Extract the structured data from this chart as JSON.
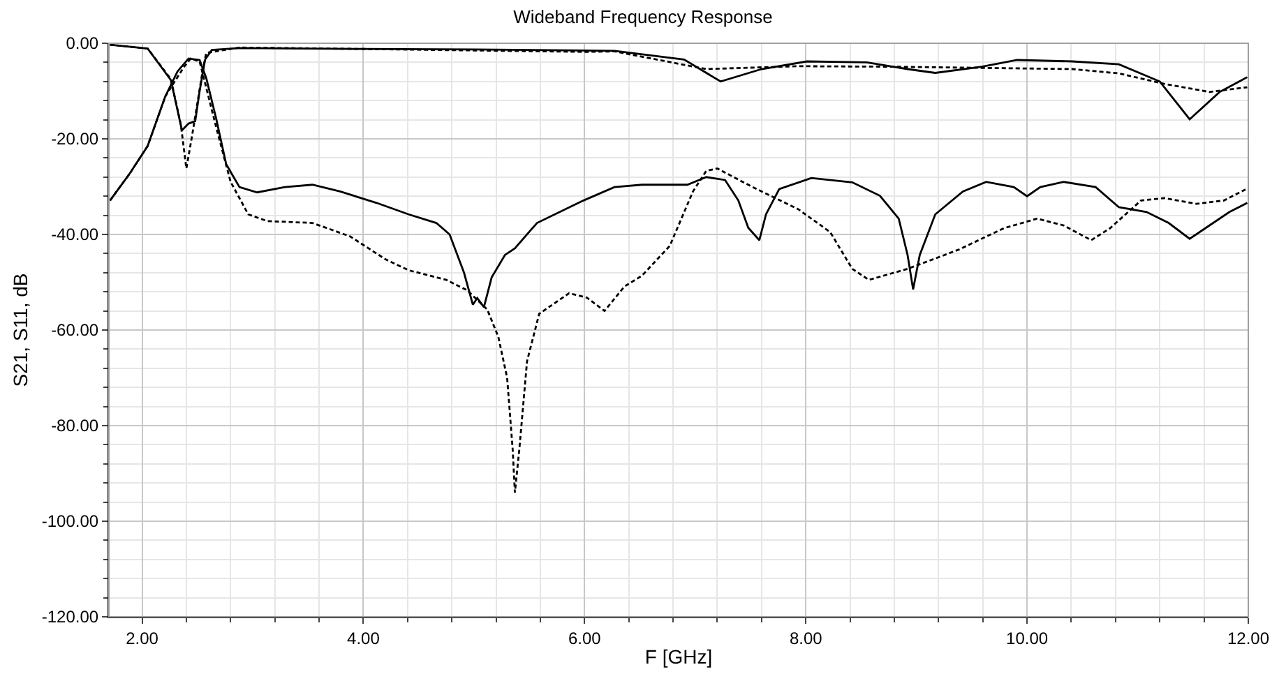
{
  "chart_data": {
    "type": "line",
    "title": "Wideband Frequency Response",
    "xlabel": "F [GHz]",
    "ylabel": "S21, S11, dB",
    "xlim": [
      1.7,
      12
    ],
    "ylim": [
      -120,
      0
    ],
    "xticks": [
      {
        "value": 2,
        "label": "2.00"
      },
      {
        "value": 4,
        "label": "4.00"
      },
      {
        "value": 6,
        "label": "6.00"
      },
      {
        "value": 8,
        "label": "8.00"
      },
      {
        "value": 10,
        "label": "10.00"
      },
      {
        "value": 12,
        "label": "12.00"
      }
    ],
    "yticks": [
      {
        "value": -120,
        "label": "-120.00"
      },
      {
        "value": -100,
        "label": "-100.00"
      },
      {
        "value": -80,
        "label": "-80.00"
      },
      {
        "value": -60,
        "label": "-60.00"
      },
      {
        "value": -40,
        "label": "-40.00"
      },
      {
        "value": -20,
        "label": "-20.00"
      },
      {
        "value": 0,
        "label": "0.00"
      }
    ],
    "grid": true,
    "marker": "none",
    "series": [
      {
        "color": "#000000",
        "line_style": "solid",
        "x": [
          1.71,
          2.05,
          2.26,
          2.36,
          2.42,
          2.48,
          2.52,
          2.57,
          2.63,
          2.88,
          4.0,
          5.0,
          6.0,
          6.27,
          6.9,
          7.23,
          7.6,
          8.01,
          8.55,
          8.92,
          9.17,
          9.59,
          9.91,
          10.41,
          10.83,
          11.2,
          11.47,
          11.74,
          11.99
        ],
        "values": [
          -0.3,
          -1.1,
          -7.7,
          -18.2,
          -16.8,
          -16.3,
          -10,
          -3.4,
          -1.4,
          -1.0,
          -1.2,
          -1.3,
          -1.5,
          -1.6,
          -3.4,
          -8.0,
          -5.4,
          -3.8,
          -4.0,
          -5.4,
          -6.2,
          -4.9,
          -3.5,
          -3.8,
          -4.4,
          -8.0,
          -15.9,
          -10.2,
          -7.1
        ]
      },
      {
        "color": "#000000",
        "line_style": "dashed",
        "x": [
          1.71,
          2.05,
          2.26,
          2.35,
          2.4,
          2.45,
          2.55,
          2.58,
          2.88,
          4.0,
          5.0,
          6.0,
          6.27,
          7.1,
          7.93,
          8.76,
          10.41,
          10.83,
          11.24,
          11.65,
          11.99
        ],
        "values": [
          -0.3,
          -1.1,
          -7.5,
          -17,
          -26.2,
          -19.6,
          -5.4,
          -2,
          -0.9,
          -1.2,
          -1.5,
          -1.8,
          -1.7,
          -5.4,
          -4.8,
          -4.9,
          -5.4,
          -6.3,
          -8.5,
          -10.2,
          -9.2
        ]
      },
      {
        "color": "#000000",
        "line_style": "solid",
        "x": [
          1.71,
          1.89,
          2.05,
          2.21,
          2.32,
          2.42,
          2.52,
          2.58,
          2.67,
          2.76,
          2.88,
          3.04,
          3.29,
          3.54,
          3.79,
          4.12,
          4.41,
          4.66,
          4.78,
          4.91,
          4.99,
          5.03,
          5.09,
          5.16,
          5.28,
          5.37,
          5.57,
          5.99,
          6.27,
          6.52,
          6.93,
          7.1,
          7.27,
          7.39,
          7.48,
          7.58,
          7.64,
          7.76,
          8.05,
          8.42,
          8.67,
          8.84,
          8.92,
          8.97,
          9.03,
          9.17,
          9.42,
          9.63,
          9.88,
          10.0,
          10.12,
          10.33,
          10.62,
          10.83,
          11.08,
          11.28,
          11.47,
          11.65,
          11.83,
          11.99
        ],
        "values": [
          -32.9,
          -27.2,
          -21.5,
          -11.1,
          -5.9,
          -3.2,
          -3.5,
          -7.3,
          -15.8,
          -25.3,
          -30.1,
          -31.2,
          -30.1,
          -29.6,
          -31,
          -33.4,
          -35.8,
          -37.6,
          -40,
          -48,
          -54.7,
          -53.3,
          -55.2,
          -49,
          -44.3,
          -42.9,
          -37.6,
          -32.9,
          -30.1,
          -29.6,
          -29.6,
          -28,
          -28.6,
          -32.9,
          -38.6,
          -41.2,
          -35.8,
          -30.5,
          -28.2,
          -29.1,
          -31.9,
          -36.7,
          -44.3,
          -51.5,
          -44.3,
          -35.8,
          -31,
          -29,
          -30.1,
          -32,
          -30.1,
          -29,
          -30.1,
          -34.3,
          -35.3,
          -37.6,
          -40.9,
          -38.1,
          -35.3,
          -33.4
        ]
      },
      {
        "color": "#000000",
        "line_style": "dashed",
        "x": [
          1.71,
          1.89,
          2.05,
          2.21,
          2.38,
          2.44,
          2.52,
          2.67,
          2.8,
          2.96,
          3.13,
          3.54,
          3.88,
          4.2,
          4.41,
          4.75,
          4.94,
          5.12,
          5.22,
          5.3,
          5.35,
          5.37,
          5.41,
          5.48,
          5.59,
          5.86,
          6.02,
          6.18,
          6.36,
          6.52,
          6.77,
          6.98,
          7.1,
          7.2,
          7.52,
          7.93,
          8.22,
          8.42,
          8.57,
          8.92,
          9.38,
          9.79,
          10.09,
          10.33,
          10.58,
          10.75,
          11.03,
          11.24,
          11.53,
          11.78,
          11.99
        ],
        "values": [
          -32.9,
          -27.2,
          -21.5,
          -11.1,
          -4.9,
          -3.2,
          -3.8,
          -17.6,
          -29,
          -35.8,
          -37.2,
          -37.6,
          -40.4,
          -45.2,
          -47.5,
          -49.5,
          -51.7,
          -55.7,
          -61.4,
          -70,
          -85,
          -94,
          -85,
          -66.5,
          -56.6,
          -52.3,
          -53.2,
          -56,
          -50.9,
          -48.6,
          -42.4,
          -31,
          -26.7,
          -26.2,
          -30.1,
          -34.7,
          -39.5,
          -47.2,
          -49.5,
          -47.2,
          -43.2,
          -38.7,
          -36.7,
          -38.1,
          -41.2,
          -38.7,
          -32.9,
          -32.4,
          -33.6,
          -32.9,
          -30.4
        ]
      }
    ]
  }
}
